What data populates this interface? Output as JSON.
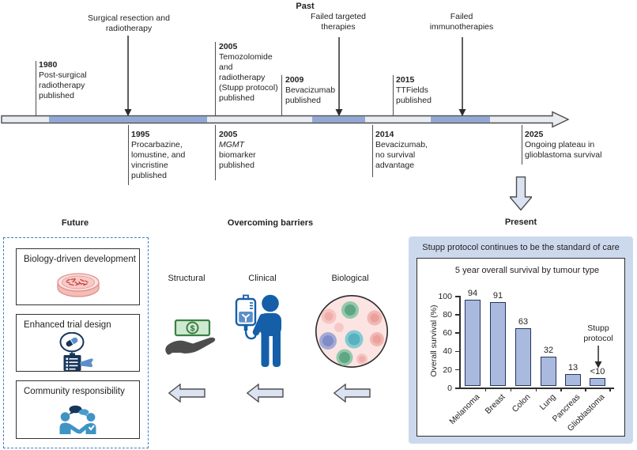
{
  "figure": {
    "past_label": "Past",
    "future_label": "Future",
    "barriers_label": "Overcoming barriers",
    "present_label": "Present"
  },
  "timeline": {
    "above_events": [
      {
        "year": "1980",
        "lines": [
          "Post-surgical",
          "radiotherapy",
          "published"
        ]
      },
      {
        "year": "2005",
        "lines": [
          "Temozolomide",
          "and",
          "radiotherapy",
          "(Stupp protocol)",
          "published"
        ]
      },
      {
        "year": "2009",
        "lines": [
          "Bevacizumab",
          "published"
        ]
      },
      {
        "year": "2015",
        "lines": [
          "TTFields",
          "published"
        ]
      }
    ],
    "arrow_labels": [
      {
        "lines": [
          "Surgical resection and",
          "radiotherapy"
        ]
      },
      {
        "lines": [
          "Failed targeted",
          "therapies"
        ]
      },
      {
        "lines": [
          "Failed",
          "immunotherapies"
        ]
      }
    ],
    "below_events": [
      {
        "year": "1995",
        "lines": [
          "Procarbazine,",
          "lomustine, and",
          "vincristine",
          "published"
        ]
      },
      {
        "year": "2005",
        "lines": [
          "MGMT",
          "biomarker",
          "published"
        ]
      },
      {
        "year": "2014",
        "lines": [
          "Bevacizumab,",
          "no survival",
          "advantage"
        ]
      },
      {
        "year": "2025",
        "lines": [
          "Ongoing plateau in",
          "glioblastoma survival"
        ]
      }
    ]
  },
  "future_boxes": [
    {
      "label": "Biology-driven development",
      "icon": "petri-dish-icon"
    },
    {
      "label": "Enhanced trial design",
      "icon": "trial-design-icon"
    },
    {
      "label": "Community responsibility",
      "icon": "community-icon"
    }
  ],
  "barriers": {
    "items": [
      {
        "label": "Structural",
        "icon": "money-hand-icon"
      },
      {
        "label": "Clinical",
        "icon": "iv-patient-icon"
      },
      {
        "label": "Biological",
        "icon": "tumour-cells-icon"
      }
    ]
  },
  "present": {
    "panel_title": "Stupp protocol continues to be the standard of care"
  },
  "chart_data": {
    "type": "bar",
    "title": "5 year overall survival by tumour type",
    "ylabel": "Overall survival (%)",
    "categories": [
      "Melanoma",
      "Breast",
      "Colon",
      "Lung",
      "Pancreas",
      "Glioblastoma"
    ],
    "values": [
      94,
      91,
      63,
      32,
      13,
      9
    ],
    "value_labels": [
      "94",
      "91",
      "63",
      "32",
      "13",
      "<10"
    ],
    "ylim": [
      0,
      100
    ],
    "yticks": [
      0,
      20,
      40,
      60,
      80,
      100
    ],
    "grid": false,
    "annotation": {
      "lines": [
        "Stupp",
        "protocol"
      ],
      "points_to": "Glioblastoma"
    }
  },
  "colors": {
    "timeline_blue": "#93a7d7",
    "timeline_light": "#e9edf3",
    "outline_dark": "#4d4d4d",
    "panel_blue": "#ccd9ed",
    "bar_fill": "#aabadf",
    "bar_border": "#26355e",
    "block_arrow_fill": "#dbe2f1",
    "dashed_border_blue": "#3f7fc4",
    "person_blue": "#155fa8",
    "community_blue": "#3f93c5",
    "dark_navy": "#17365c",
    "money_green": "#3a8144",
    "petri_pink": "#f8cfcc",
    "cell_red": "#c9423c",
    "text": "#231f20"
  }
}
